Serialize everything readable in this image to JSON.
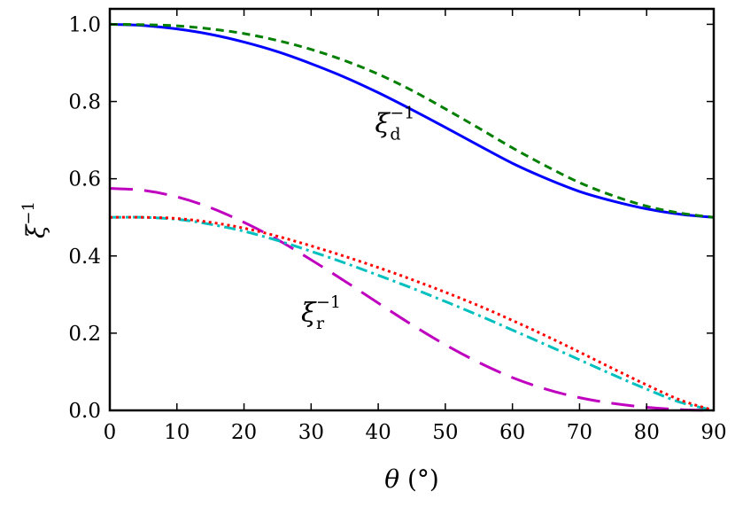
{
  "chart_data": {
    "type": "line",
    "xlabel_symbol": "θ",
    "xlabel_unit": "(°)",
    "ylabel_symbol": "ξ",
    "ylabel_sup": "−1",
    "xlim": [
      0,
      90
    ],
    "ylim": [
      0,
      1.04
    ],
    "xticks": [
      0,
      10,
      20,
      30,
      40,
      50,
      60,
      70,
      80,
      90
    ],
    "yticks": [
      0.0,
      0.2,
      0.4,
      0.6,
      0.8,
      1.0
    ],
    "ytick_labels": [
      "0.0",
      "0.2",
      "0.4",
      "0.6",
      "0.8",
      "1.0"
    ],
    "grid": false,
    "annotations": [
      {
        "id": "d",
        "base": "ξ",
        "sub": "d",
        "sup": "−1",
        "x": 39.5,
        "y": 0.72
      },
      {
        "id": "r",
        "base": "ξ",
        "sub": "r",
        "sup": "−1",
        "x": 28.5,
        "y": 0.23
      }
    ],
    "series": [
      {
        "color": "#0000ff",
        "dash": "none",
        "width": 3,
        "x": [
          0,
          5,
          10,
          15,
          20,
          25,
          30,
          35,
          40,
          45,
          50,
          55,
          60,
          65,
          70,
          75,
          80,
          85,
          90
        ],
        "y": [
          1.0,
          0.997,
          0.988,
          0.974,
          0.954,
          0.929,
          0.898,
          0.863,
          0.823,
          0.779,
          0.733,
          0.686,
          0.64,
          0.601,
          0.567,
          0.542,
          0.522,
          0.508,
          0.5
        ]
      },
      {
        "color": "#007f00",
        "dash": "9,6",
        "width": 3,
        "x": [
          0,
          5,
          10,
          15,
          20,
          25,
          30,
          35,
          40,
          45,
          50,
          55,
          60,
          65,
          70,
          75,
          80,
          85,
          90
        ],
        "y": [
          1.0,
          0.999,
          0.996,
          0.988,
          0.976,
          0.958,
          0.935,
          0.906,
          0.871,
          0.829,
          0.781,
          0.731,
          0.68,
          0.633,
          0.59,
          0.556,
          0.529,
          0.511,
          0.5
        ]
      },
      {
        "color": "#bf00bf",
        "dash": "26,13",
        "width": 3,
        "x": [
          0,
          5,
          10,
          15,
          20,
          25,
          30,
          35,
          40,
          45,
          50,
          55,
          60,
          65,
          70,
          75,
          80,
          85,
          90
        ],
        "y": [
          0.575,
          0.57,
          0.553,
          0.525,
          0.487,
          0.442,
          0.39,
          0.335,
          0.278,
          0.222,
          0.17,
          0.124,
          0.085,
          0.055,
          0.033,
          0.018,
          0.008,
          0.002,
          0.0
        ]
      },
      {
        "color": "#00bfbf",
        "dash": "13,5,3,5",
        "width": 3,
        "x": [
          0,
          5,
          10,
          15,
          20,
          25,
          30,
          35,
          40,
          45,
          50,
          55,
          60,
          65,
          70,
          75,
          80,
          85,
          90
        ],
        "y": [
          0.5,
          0.5,
          0.495,
          0.482,
          0.464,
          0.44,
          0.412,
          0.382,
          0.35,
          0.317,
          0.282,
          0.246,
          0.208,
          0.17,
          0.131,
          0.092,
          0.055,
          0.021,
          0.0
        ]
      },
      {
        "color": "#ff0000",
        "dash": "3,4",
        "width": 3,
        "x": [
          0,
          5,
          10,
          15,
          20,
          25,
          30,
          35,
          40,
          45,
          50,
          55,
          60,
          65,
          70,
          75,
          80,
          85,
          90
        ],
        "y": [
          0.5,
          0.5,
          0.497,
          0.487,
          0.472,
          0.451,
          0.426,
          0.399,
          0.37,
          0.339,
          0.306,
          0.271,
          0.233,
          0.193,
          0.151,
          0.108,
          0.066,
          0.027,
          0.0
        ]
      }
    ]
  }
}
